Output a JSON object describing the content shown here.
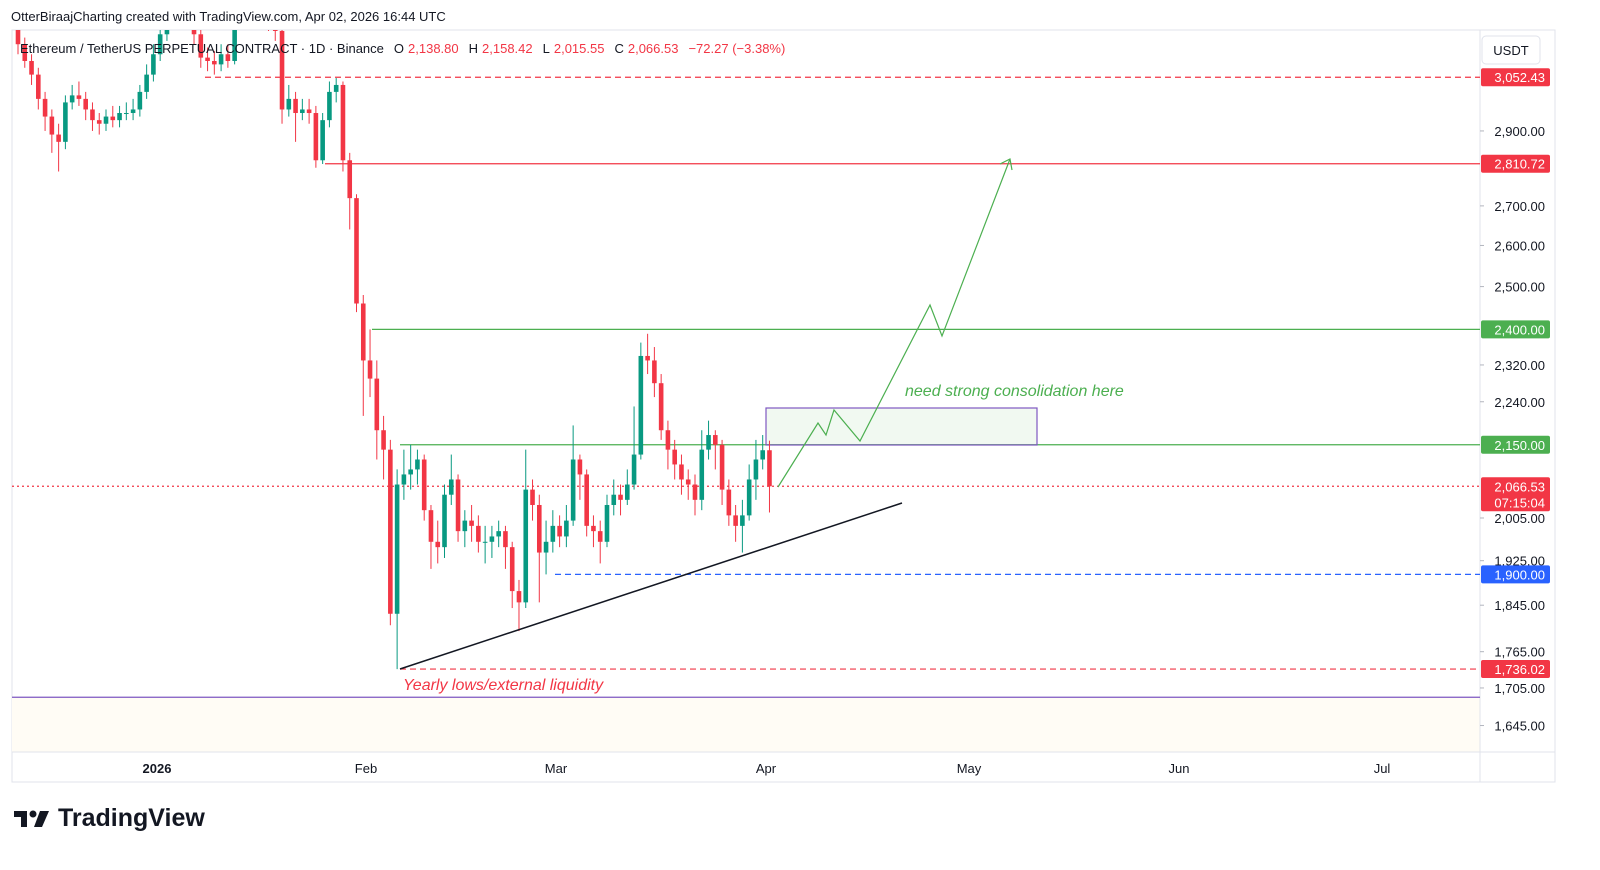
{
  "header": {
    "note": "OtterBiraajCharting created with TradingView.com, Apr 02, 2026 16:44 UTC"
  },
  "chart_data": {
    "type": "candlestick",
    "symbol": "Ethereum / TetherUS PERPETUAL CONTRACT · 1D · Binance",
    "ohlc_legend": [
      {
        "key": "O",
        "value": "2,138.80"
      },
      {
        "key": "H",
        "value": "2,158.42"
      },
      {
        "key": "L",
        "value": "2,015.55"
      },
      {
        "key": "C",
        "value": "2,066.53"
      }
    ],
    "change": "−72.27 (−3.38%)",
    "currency": "USDT",
    "up_color": "#089981",
    "down_color": "#f23645",
    "log_scale": true,
    "ylim": [
      1604,
      3193
    ],
    "yticks": [
      {
        "value": 2900,
        "label": "2,900.00"
      },
      {
        "value": 2700,
        "label": "2,700.00"
      },
      {
        "value": 2600,
        "label": "2,600.00"
      },
      {
        "value": 2500,
        "label": "2,500.00"
      },
      {
        "value": 2320,
        "label": "2,320.00"
      },
      {
        "value": 2240,
        "label": "2,240.00"
      },
      {
        "value": 2005,
        "label": "2,005.00"
      },
      {
        "value": 1925,
        "label": "1,925.00"
      },
      {
        "value": 1845,
        "label": "1,845.00"
      },
      {
        "value": 1765,
        "label": "1,765.00"
      },
      {
        "value": 1705,
        "label": "1,705.00"
      },
      {
        "value": 1645,
        "label": "1,645.00"
      }
    ],
    "time_labels": [
      "2026",
      "Feb",
      "Mar",
      "Apr",
      "May",
      "Jun",
      "Jul"
    ],
    "open": [
      3200,
      3150,
      3100,
      3060,
      2990,
      2940,
      2890,
      2870,
      2980,
      3000,
      2990,
      2960,
      2930,
      2920,
      2940,
      2930,
      2950,
      2950,
      2960,
      3010,
      3060,
      3120,
      3180,
      3230,
      3250,
      3270,
      3260,
      3180,
      3110,
      3100,
      3090,
      3120,
      3100,
      3240,
      3320,
      3300,
      3290,
      3300,
      3210,
      3190,
      2960,
      2990,
      2950,
      2960,
      2950,
      2820,
      2930,
      3010,
      3030,
      2820,
      2720,
      2460,
      2330,
      2290,
      2180,
      2140,
      1830,
      2070,
      2090,
      2100,
      2120,
      2020,
      1960,
      1950,
      2050,
      2080,
      1980,
      2000,
      1990,
      1960,
      1960,
      1970,
      1980,
      1950,
      1870,
      1850,
      2060,
      2030,
      1940,
      1960,
      1990,
      1970,
      2000,
      2120,
      2090,
      1990,
      1980,
      1960,
      2030,
      2050,
      2040,
      2070,
      2130,
      2340,
      2330,
      2280,
      2180,
      2140,
      2110,
      2080,
      2070,
      2040,
      2140,
      2170,
      2150,
      2060,
      2010,
      1990,
      2010,
      2080,
      2120,
      2138.8
    ],
    "high": [
      3230,
      3170,
      3120,
      3080,
      3010,
      2960,
      2920,
      3000,
      3030,
      3040,
      3010,
      2980,
      2950,
      2960,
      2970,
      2970,
      2980,
      2990,
      3030,
      3090,
      3150,
      3210,
      3260,
      3280,
      3300,
      3310,
      3280,
      3200,
      3140,
      3130,
      3150,
      3150,
      3270,
      3360,
      3350,
      3330,
      3330,
      3320,
      3240,
      3200,
      3030,
      3010,
      2990,
      2990,
      2970,
      2950,
      3040,
      3050,
      3040,
      2840,
      2730,
      2480,
      2400,
      2330,
      2210,
      2160,
      2100,
      2140,
      2150,
      2140,
      2130,
      2030,
      2000,
      2070,
      2130,
      2090,
      2020,
      2030,
      2010,
      1990,
      1990,
      2000,
      1990,
      1960,
      1890,
      2140,
      2080,
      2050,
      2000,
      2020,
      2010,
      2030,
      2190,
      2130,
      2100,
      2010,
      2000,
      2050,
      2080,
      2070,
      2100,
      2230,
      2370,
      2390,
      2360,
      2300,
      2200,
      2160,
      2130,
      2100,
      2090,
      2180,
      2200,
      2180,
      2160,
      2080,
      2030,
      2040,
      2110,
      2160,
      2170,
      2158.42
    ],
    "low": [
      3120,
      3080,
      3030,
      2960,
      2900,
      2840,
      2790,
      2850,
      2960,
      2970,
      2930,
      2900,
      2890,
      2900,
      2910,
      2910,
      2930,
      2930,
      2940,
      2990,
      3040,
      3100,
      3160,
      3200,
      3220,
      3220,
      3150,
      3080,
      3070,
      3060,
      3070,
      3080,
      3090,
      3220,
      3270,
      3260,
      3260,
      3190,
      3160,
      2920,
      2940,
      2870,
      2930,
      2920,
      2800,
      2810,
      2910,
      2980,
      2790,
      2640,
      2440,
      2210,
      2250,
      2120,
      2080,
      1810,
      1736,
      2040,
      2060,
      2070,
      2000,
      1910,
      1920,
      1930,
      2030,
      1960,
      1950,
      1960,
      1940,
      1920,
      1930,
      1950,
      1910,
      1840,
      1800,
      1840,
      2000,
      1850,
      1900,
      1940,
      1950,
      1950,
      1990,
      2040,
      1970,
      1950,
      1920,
      1950,
      2010,
      2010,
      2030,
      2060,
      2120,
      2300,
      2250,
      2160,
      2100,
      2080,
      2050,
      2040,
      2010,
      2020,
      2120,
      2100,
      2030,
      1990,
      1960,
      1940,
      2000,
      2040,
      2100,
      2015.55
    ],
    "close": [
      3150,
      3100,
      3060,
      2990,
      2940,
      2890,
      2870,
      2980,
      3000,
      2990,
      2960,
      2930,
      2920,
      2940,
      2930,
      2950,
      2950,
      2960,
      3010,
      3060,
      3120,
      3180,
      3230,
      3250,
      3270,
      3260,
      3180,
      3110,
      3100,
      3090,
      3120,
      3100,
      3240,
      3320,
      3300,
      3290,
      3300,
      3210,
      3190,
      2960,
      2990,
      2950,
      2960,
      2950,
      2820,
      2930,
      3010,
      3030,
      2820,
      2720,
      2460,
      2330,
      2290,
      2180,
      2140,
      1830,
      2070,
      2090,
      2100,
      2120,
      2020,
      1960,
      1950,
      2050,
      2080,
      1980,
      2000,
      1990,
      1960,
      1960,
      1970,
      1980,
      1950,
      1870,
      1850,
      2060,
      2030,
      1940,
      1960,
      1990,
      1970,
      2000,
      2120,
      2090,
      1990,
      1980,
      1960,
      2030,
      2050,
      2040,
      2070,
      2130,
      2340,
      2330,
      2280,
      2180,
      2140,
      2110,
      2080,
      2070,
      2040,
      2140,
      2170,
      2150,
      2060,
      2010,
      1990,
      2010,
      2080,
      2120,
      2138.8,
      2066.53
    ],
    "levels": [
      {
        "value": 3052.43,
        "label": "3,052.43",
        "color": "#f23645",
        "style": "dashed"
      },
      {
        "value": 2810.72,
        "label": "2,810.72",
        "color": "#f23645",
        "style": "solid"
      },
      {
        "value": 2400,
        "label": "2,400.00",
        "color": "#4caf50",
        "style": "solid"
      },
      {
        "value": 2150,
        "label": "2,150.00",
        "color": "#4caf50",
        "style": "solid"
      },
      {
        "value": 2066.53,
        "label": "2,066.53",
        "countdown": "07:15:04",
        "color": "#f23645",
        "style": "dotted"
      },
      {
        "value": 1900,
        "label": "1,900.00",
        "color": "#2962ff",
        "style": "dashed"
      },
      {
        "value": 1736.02,
        "label": "1,736.02",
        "color": "#f23645",
        "style": "dashed"
      },
      {
        "value": 1690,
        "color": "#7e57c2",
        "style": "solid"
      }
    ],
    "annotations": [
      "need strong consolidation here",
      "Yearly lows/external liquidity"
    ]
  },
  "footer": {
    "brand": "TradingView"
  }
}
